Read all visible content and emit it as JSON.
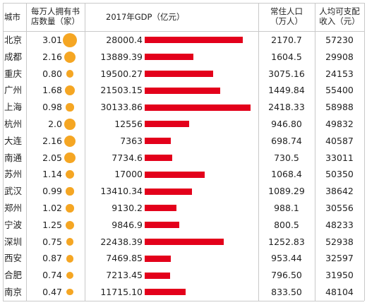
{
  "headers": {
    "city": "城市",
    "stores": [
      "每万人拥有书",
      "店数量（家）"
    ],
    "gdp": "2017年GDP（亿元）",
    "pop": [
      "常住人口",
      "（万人）"
    ],
    "income": [
      "人均可支配",
      "收入（元）"
    ]
  },
  "colors": {
    "bar": "#e3001b",
    "dot": "#f5a623",
    "grid": "#c9c9c9"
  },
  "chart_data": {
    "type": "table",
    "columns": [
      "城市",
      "每万人拥有书店数量（家）",
      "2017年GDP（亿元）",
      "常住人口（万人）",
      "人均可支配收入（元）"
    ],
    "rows": [
      {
        "city": "北京",
        "stores": "3.01",
        "gdp": "28000.4",
        "pop": "2170.7",
        "income": "57230"
      },
      {
        "city": "成都",
        "stores": "2.16",
        "gdp": "13889.39",
        "pop": "1604.5",
        "income": "29908"
      },
      {
        "city": "重庆",
        "stores": "0.80",
        "gdp": "19500.27",
        "pop": "3075.16",
        "income": "24153"
      },
      {
        "city": "广州",
        "stores": "1.68",
        "gdp": "21503.15",
        "pop": "1449.84",
        "income": "55400"
      },
      {
        "city": "上海",
        "stores": "0.98",
        "gdp": "30133.86",
        "pop": "2418.33",
        "income": "58988"
      },
      {
        "city": "杭州",
        "stores": "2.0",
        "gdp": "12556",
        "pop": "946.80",
        "income": "49832"
      },
      {
        "city": "大连",
        "stores": "2.16",
        "gdp": "7363",
        "pop": "698.74",
        "income": "40587"
      },
      {
        "city": "南通",
        "stores": "2.05",
        "gdp": "7734.6",
        "pop": "730.5",
        "income": "33011"
      },
      {
        "city": "苏州",
        "stores": "1.14",
        "gdp": "17000",
        "pop": "1068.4",
        "income": "50350"
      },
      {
        "city": "武汉",
        "stores": "0.99",
        "gdp": "13410.34",
        "pop": "1089.29",
        "income": "38642"
      },
      {
        "city": "郑州",
        "stores": "1.02",
        "gdp": "9130.2",
        "pop": "988.1",
        "income": "30556"
      },
      {
        "city": "宁波",
        "stores": "1.25",
        "gdp": "9846.9",
        "pop": "800.5",
        "income": "48233"
      },
      {
        "city": "深圳",
        "stores": "0.75",
        "gdp": "22438.39",
        "pop": "1252.83",
        "income": "52938"
      },
      {
        "city": "西安",
        "stores": "0.87",
        "gdp": "7469.85",
        "pop": "953.44",
        "income": "32597"
      },
      {
        "city": "合肥",
        "stores": "0.74",
        "gdp": "7213.45",
        "pop": "796.50",
        "income": "31950"
      },
      {
        "city": "南京",
        "stores": "0.47",
        "gdp": "11715.10",
        "pop": "833.50",
        "income": "48104"
      }
    ],
    "gdp_axis_max": 30133.86,
    "grid": true
  }
}
